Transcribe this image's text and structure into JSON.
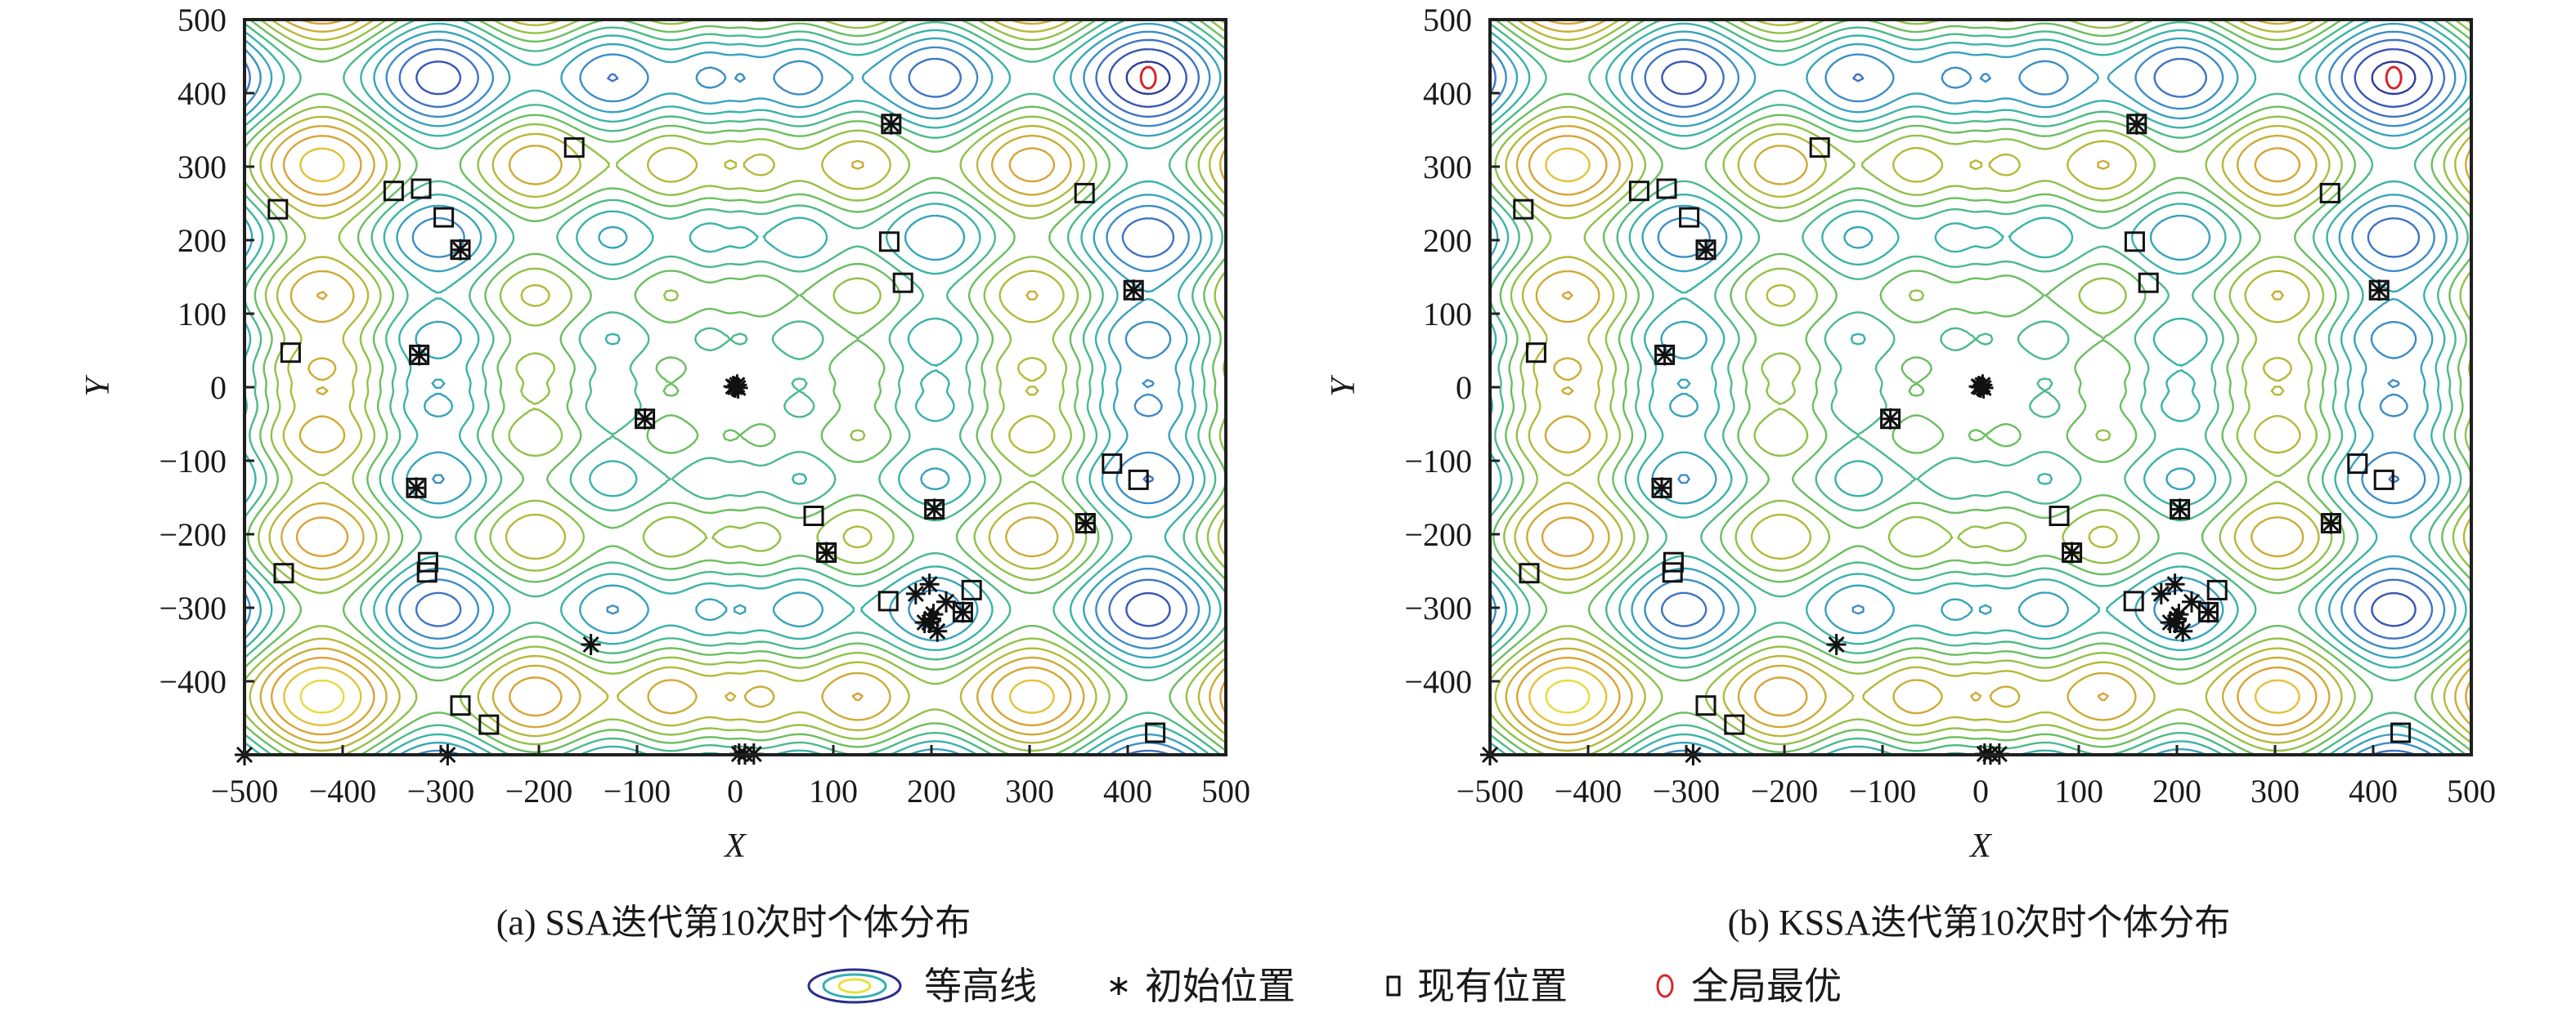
{
  "chart_data": [
    {
      "type": "scatter",
      "panel": "a",
      "title": "",
      "caption": "(a) SSA迭代第10次时个体分布",
      "xlabel": "X",
      "ylabel": "Y",
      "xlim": [
        -500,
        500
      ],
      "ylim": [
        -500,
        500
      ],
      "xticks": [
        -500,
        -400,
        -300,
        -200,
        -100,
        0,
        100,
        200,
        300,
        400,
        500
      ],
      "yticks": [
        -400,
        -300,
        -200,
        -100,
        0,
        100,
        200,
        300,
        400,
        500
      ],
      "xtick_labels": [
        "−500",
        "−400",
        "−300",
        "−200",
        "−100",
        "0",
        "100",
        "200",
        "300",
        "400",
        "500"
      ],
      "ytick_labels": [
        "−400",
        "−300",
        "−200",
        "−100",
        "0",
        "100",
        "200",
        "300",
        "400",
        "500"
      ],
      "grid": false,
      "background_contour": {
        "function": "schwefel: f(x,y) = -x*sin(sqrt(|x|)) - y*sin(sqrt(|y|))",
        "levels": 14,
        "colormap": [
          "#2a2f86",
          "#3650b0",
          "#3f74c4",
          "#3b95c6",
          "#33b0b4",
          "#47b98f",
          "#6fbf5a",
          "#a3c23e",
          "#c9ae33",
          "#d9a235",
          "#e6c93a",
          "#e9e743"
        ]
      },
      "series": [
        {
          "name": "初始位置",
          "marker": "asterisk",
          "points": [
            [
              -280,
              187
            ],
            [
              -322,
              44
            ],
            [
              -92,
              -43
            ],
            [
              159,
              358
            ],
            [
              406,
              132
            ],
            [
              203,
              -166
            ],
            [
              357,
              -185
            ],
            [
              -325,
              -137
            ],
            [
              93,
              -225
            ],
            [
              232,
              -306
            ],
            [
              0,
              0
            ],
            [
              2,
              3
            ],
            [
              -2,
              1
            ],
            [
              3,
              -1
            ],
            [
              -147,
              -350
            ],
            [
              -500,
              -500
            ],
            [
              -293,
              -500
            ],
            [
              4,
              -499
            ],
            [
              10,
              -499
            ],
            [
              19,
              -499
            ],
            [
              198,
              -268
            ],
            [
              184,
              -281
            ],
            [
              215,
              -292
            ],
            [
              202,
              -309
            ],
            [
              193,
              -320
            ],
            [
              198,
              -320
            ],
            [
              206,
              -332
            ],
            [
              200,
              -315
            ]
          ]
        },
        {
          "name": "现有位置",
          "marker": "square",
          "points": [
            [
              -466,
              242
            ],
            [
              -348,
              267
            ],
            [
              -320,
              270
            ],
            [
              -297,
              231
            ],
            [
              -280,
              187
            ],
            [
              -164,
              326
            ],
            [
              -453,
              47
            ],
            [
              -322,
              44
            ],
            [
              -92,
              -43
            ],
            [
              159,
              358
            ],
            [
              157,
              198
            ],
            [
              171,
              142
            ],
            [
              356,
              264
            ],
            [
              406,
              132
            ],
            [
              384,
              -104
            ],
            [
              411,
              -126
            ],
            [
              203,
              -166
            ],
            [
              357,
              -185
            ],
            [
              -325,
              -137
            ],
            [
              -460,
              -253
            ],
            [
              -313,
              -238
            ],
            [
              -314,
              -252
            ],
            [
              -280,
              -433
            ],
            [
              -251,
              -459
            ],
            [
              80,
              -175
            ],
            [
              93,
              -225
            ],
            [
              156,
              -291
            ],
            [
              241,
              -276
            ],
            [
              232,
              -306
            ],
            [
              428,
              -470
            ]
          ]
        },
        {
          "name": "全局最优",
          "marker": "circle",
          "color": "#d7262b",
          "points": [
            [
              420.97,
              420.97
            ]
          ]
        }
      ]
    },
    {
      "type": "scatter",
      "panel": "b",
      "title": "",
      "caption": "(b) KSSA迭代第10次时个体分布",
      "xlabel": "X",
      "ylabel": "Y",
      "xlim": [
        -500,
        500
      ],
      "ylim": [
        -500,
        500
      ],
      "xticks": [
        -500,
        -400,
        -300,
        -200,
        -100,
        0,
        100,
        200,
        300,
        400,
        500
      ],
      "yticks": [
        -400,
        -300,
        -200,
        -100,
        0,
        100,
        200,
        300,
        400,
        500
      ],
      "xtick_labels": [
        "−500",
        "−400",
        "−300",
        "−200",
        "−100",
        "0",
        "100",
        "200",
        "300",
        "400",
        "500"
      ],
      "ytick_labels": [
        "−400",
        "−300",
        "−200",
        "−100",
        "0",
        "100",
        "200",
        "300",
        "400",
        "500"
      ],
      "grid": false,
      "background_contour": {
        "function": "schwefel: f(x,y) = -x*sin(sqrt(|x|)) - y*sin(sqrt(|y|))",
        "levels": 14,
        "colormap": [
          "#2a2f86",
          "#3650b0",
          "#3f74c4",
          "#3b95c6",
          "#33b0b4",
          "#47b98f",
          "#6fbf5a",
          "#a3c23e",
          "#c9ae33",
          "#d9a235",
          "#e6c93a",
          "#e9e743"
        ]
      },
      "series": [
        {
          "name": "初始位置",
          "marker": "asterisk",
          "points": [
            [
              -280,
              187
            ],
            [
              -322,
              44
            ],
            [
              -92,
              -43
            ],
            [
              159,
              358
            ],
            [
              406,
              132
            ],
            [
              203,
              -166
            ],
            [
              357,
              -185
            ],
            [
              -325,
              -137
            ],
            [
              93,
              -225
            ],
            [
              232,
              -306
            ],
            [
              0,
              0
            ],
            [
              2,
              3
            ],
            [
              -2,
              1
            ],
            [
              3,
              -1
            ],
            [
              -147,
              -350
            ],
            [
              -500,
              -500
            ],
            [
              -293,
              -500
            ],
            [
              4,
              -499
            ],
            [
              10,
              -499
            ],
            [
              19,
              -499
            ],
            [
              198,
              -268
            ],
            [
              184,
              -281
            ],
            [
              215,
              -292
            ],
            [
              202,
              -309
            ],
            [
              193,
              -320
            ],
            [
              198,
              -320
            ],
            [
              206,
              -332
            ],
            [
              200,
              -315
            ]
          ]
        },
        {
          "name": "现有位置",
          "marker": "square",
          "points": [
            [
              -466,
              242
            ],
            [
              -348,
              267
            ],
            [
              -320,
              270
            ],
            [
              -297,
              231
            ],
            [
              -280,
              187
            ],
            [
              -164,
              326
            ],
            [
              -453,
              47
            ],
            [
              -322,
              44
            ],
            [
              -92,
              -43
            ],
            [
              159,
              358
            ],
            [
              157,
              198
            ],
            [
              171,
              142
            ],
            [
              356,
              264
            ],
            [
              406,
              132
            ],
            [
              384,
              -104
            ],
            [
              411,
              -126
            ],
            [
              203,
              -166
            ],
            [
              357,
              -185
            ],
            [
              -325,
              -137
            ],
            [
              -460,
              -253
            ],
            [
              -313,
              -238
            ],
            [
              -314,
              -252
            ],
            [
              -280,
              -433
            ],
            [
              -251,
              -459
            ],
            [
              80,
              -175
            ],
            [
              93,
              -225
            ],
            [
              156,
              -291
            ],
            [
              241,
              -276
            ],
            [
              232,
              -306
            ],
            [
              428,
              -470
            ]
          ]
        },
        {
          "name": "全局最优",
          "marker": "circle",
          "color": "#d7262b",
          "points": [
            [
              420.97,
              420.97
            ]
          ]
        }
      ]
    }
  ],
  "legend": {
    "placement": "bottom-center",
    "items": [
      {
        "label": "等高线",
        "icon": "contour-icon"
      },
      {
        "label": "初始位置",
        "icon": "asterisk-icon"
      },
      {
        "label": "现有位置",
        "icon": "square-icon"
      },
      {
        "label": "全局最优",
        "icon": "circle-icon"
      }
    ]
  }
}
